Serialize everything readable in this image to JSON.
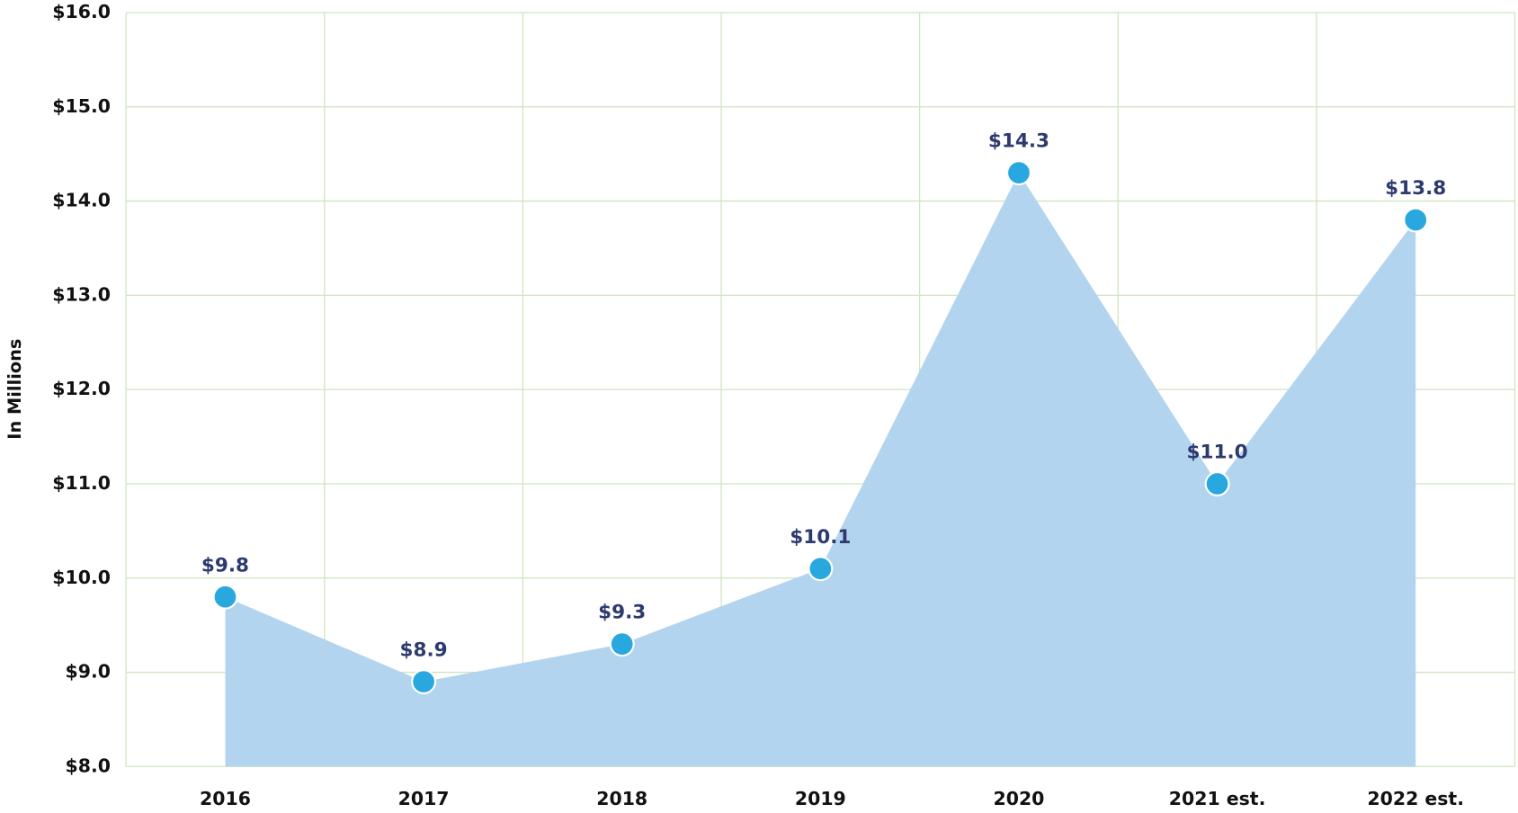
{
  "chart_data": {
    "type": "area",
    "y_label": "In Millions",
    "categories": [
      "2016",
      "2017",
      "2018",
      "2019",
      "2020",
      "2021 est.",
      "2022 est."
    ],
    "values": [
      9.8,
      8.9,
      9.3,
      10.1,
      14.3,
      11.0,
      13.8
    ],
    "value_labels": [
      "$9.8",
      "$8.9",
      "$9.3",
      "$10.1",
      "$14.3",
      "$11.0",
      "$13.8"
    ],
    "color": "#b3d4ef",
    "marker_color": "#29a8e0",
    "ylim": [
      8,
      16
    ],
    "yticks": [
      {
        "value": 8,
        "label": "$8.0"
      },
      {
        "value": 9,
        "label": "$9.0"
      },
      {
        "value": 10,
        "label": "$10.0"
      },
      {
        "value": 11,
        "label": "$11.0"
      },
      {
        "value": 12,
        "label": "$12.0"
      },
      {
        "value": 13,
        "label": "$13.0"
      },
      {
        "value": 14,
        "label": "$14.0"
      },
      {
        "value": 15,
        "label": "$15.0"
      },
      {
        "value": 16,
        "label": "$16.0"
      }
    ],
    "grid": true
  }
}
